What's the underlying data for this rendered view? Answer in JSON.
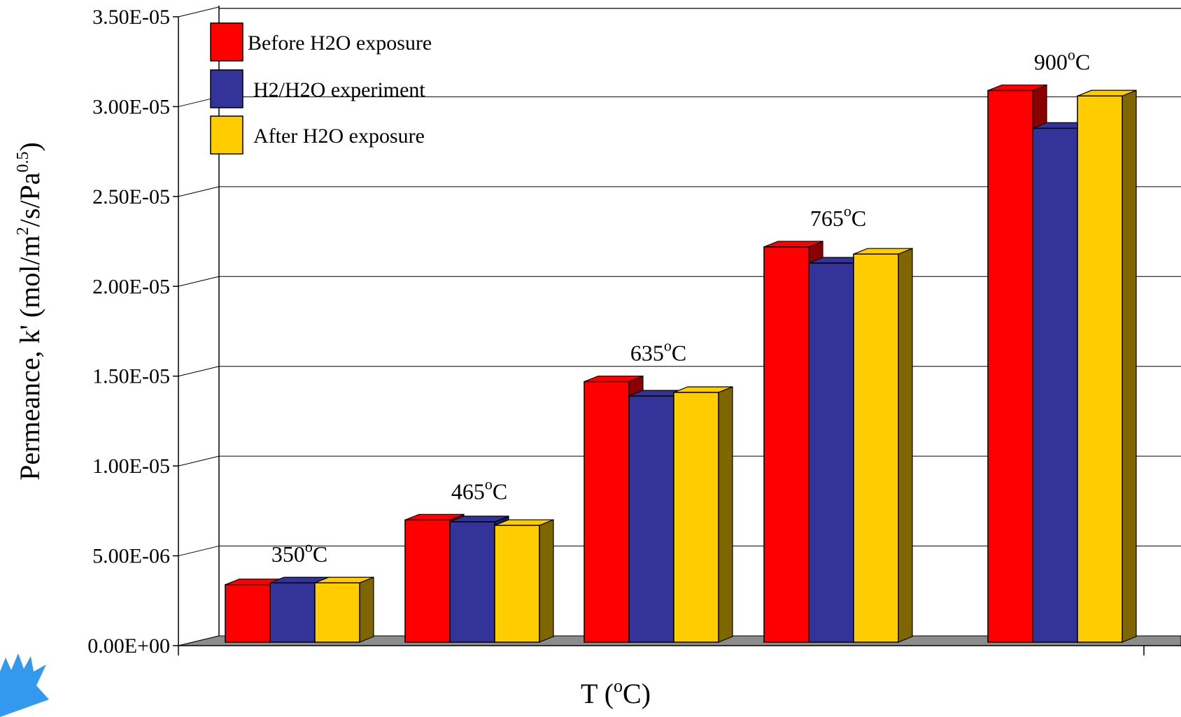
{
  "chart_data": {
    "type": "bar",
    "title": "",
    "ylabel": "Permeance, k' (mol/m²/s/Pa^0.5)",
    "ylabel_parts": {
      "main": "Permeance, k' (mol/m",
      "sup1": "2",
      "mid": "/s/Pa",
      "sup2": "0.5",
      "end": ")"
    },
    "xlabel": "T (°C)",
    "xlabel_parts": {
      "main": "T (",
      "sup": "o",
      "end": "C)"
    },
    "ylim": [
      0,
      3.5e-05
    ],
    "yticks": [
      "0.00E+00",
      "5.00E-06",
      "1.00E-05",
      "1.50E-05",
      "2.00E-05",
      "2.50E-05",
      "3.00E-05",
      "3.50E-05"
    ],
    "grid": true,
    "legend_position": "top-left",
    "categories": [
      {
        "value": "350",
        "unit": "C",
        "sup": "o"
      },
      {
        "value": "465",
        "unit": "C",
        "sup": "o"
      },
      {
        "value": "635",
        "unit": "C",
        "sup": "o"
      },
      {
        "value": "765",
        "unit": "C",
        "sup": "o"
      },
      {
        "value": "900",
        "unit": "C",
        "sup": "o"
      }
    ],
    "series": [
      {
        "name": "Before H2O exposure",
        "color": "#ff0000",
        "side": "#8b0000",
        "values": [
          3.2e-06,
          6.8e-06,
          1.45e-05,
          2.2e-05,
          3.07e-05
        ]
      },
      {
        "name": "H2/H2O experiment",
        "color": "#333399",
        "side": "#1a1a66",
        "values": [
          3.3e-06,
          6.7e-06,
          1.37e-05,
          2.11e-05,
          2.86e-05
        ]
      },
      {
        "name": "After H2O exposure",
        "color": "#ffcc00",
        "side": "#806600",
        "values": [
          3.3e-06,
          6.5e-06,
          1.39e-05,
          2.16e-05,
          3.04e-05
        ]
      }
    ]
  }
}
